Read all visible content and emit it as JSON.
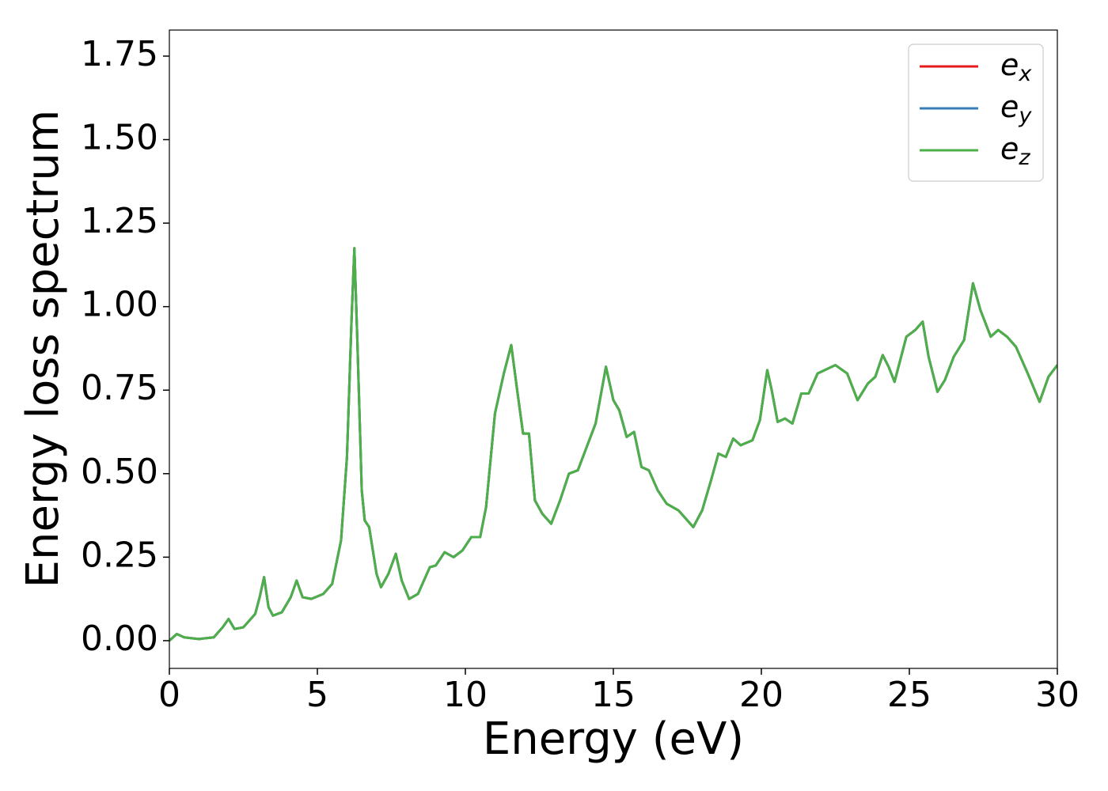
{
  "chart_data": {
    "type": "line",
    "xlabel": "Energy (eV)",
    "ylabel": "Energy loss spectrum",
    "x": [
      0,
      0.25,
      0.5,
      1.0,
      1.5,
      1.8,
      2.0,
      2.2,
      2.5,
      2.9,
      3.05,
      3.2,
      3.35,
      3.5,
      3.8,
      4.1,
      4.3,
      4.5,
      4.8,
      5.2,
      5.5,
      5.8,
      6.0,
      6.15,
      6.25,
      6.35,
      6.5,
      6.6,
      6.75,
      7.0,
      7.15,
      7.4,
      7.65,
      7.85,
      8.1,
      8.4,
      8.8,
      9.0,
      9.3,
      9.6,
      9.9,
      10.2,
      10.5,
      10.7,
      11.0,
      11.3,
      11.55,
      11.75,
      11.95,
      12.15,
      12.35,
      12.6,
      12.9,
      13.2,
      13.5,
      13.8,
      14.1,
      14.4,
      14.75,
      15.0,
      15.2,
      15.45,
      15.7,
      15.95,
      16.2,
      16.5,
      16.8,
      17.2,
      17.5,
      17.7,
      18.0,
      18.3,
      18.55,
      18.8,
      19.05,
      19.3,
      19.7,
      19.95,
      20.2,
      20.35,
      20.55,
      20.8,
      21.05,
      21.35,
      21.6,
      21.9,
      22.5,
      22.9,
      23.25,
      23.6,
      23.85,
      24.1,
      24.3,
      24.5,
      24.9,
      25.2,
      25.45,
      25.65,
      25.95,
      26.2,
      26.5,
      26.85,
      27.15,
      27.4,
      27.75,
      28.0,
      28.3,
      28.6,
      29.0,
      29.4,
      29.7,
      30.0
    ],
    "series": [
      {
        "name": "ex",
        "color": "#e41a1c",
        "values": [
          0.0,
          0.02,
          0.01,
          0.005,
          0.01,
          0.04,
          0.065,
          0.035,
          0.04,
          0.08,
          0.13,
          0.19,
          0.1,
          0.075,
          0.085,
          0.13,
          0.18,
          0.13,
          0.125,
          0.14,
          0.17,
          0.3,
          0.55,
          0.95,
          1.175,
          0.9,
          0.45,
          0.36,
          0.34,
          0.2,
          0.16,
          0.2,
          0.26,
          0.18,
          0.125,
          0.14,
          0.22,
          0.225,
          0.265,
          0.25,
          0.27,
          0.31,
          0.31,
          0.4,
          0.68,
          0.8,
          0.885,
          0.75,
          0.62,
          0.62,
          0.42,
          0.38,
          0.35,
          0.42,
          0.5,
          0.51,
          0.58,
          0.65,
          0.82,
          0.72,
          0.69,
          0.61,
          0.625,
          0.52,
          0.51,
          0.45,
          0.41,
          0.39,
          0.36,
          0.34,
          0.39,
          0.48,
          0.56,
          0.55,
          0.605,
          0.585,
          0.6,
          0.66,
          0.81,
          0.75,
          0.655,
          0.665,
          0.65,
          0.74,
          0.74,
          0.8,
          0.825,
          0.8,
          0.72,
          0.77,
          0.79,
          0.855,
          0.82,
          0.775,
          0.91,
          0.93,
          0.955,
          0.85,
          0.745,
          0.78,
          0.85,
          0.9,
          1.07,
          0.99,
          0.91,
          0.93,
          0.91,
          0.88,
          0.8,
          0.715,
          0.79,
          0.825
        ]
      },
      {
        "name": "ey",
        "color": "#377eb8",
        "values": [
          0.0,
          0.02,
          0.01,
          0.005,
          0.01,
          0.04,
          0.065,
          0.035,
          0.04,
          0.08,
          0.13,
          0.19,
          0.1,
          0.075,
          0.085,
          0.13,
          0.18,
          0.13,
          0.125,
          0.14,
          0.17,
          0.3,
          0.55,
          0.95,
          1.175,
          0.9,
          0.45,
          0.36,
          0.34,
          0.2,
          0.16,
          0.2,
          0.26,
          0.18,
          0.125,
          0.14,
          0.22,
          0.225,
          0.265,
          0.25,
          0.27,
          0.31,
          0.31,
          0.4,
          0.68,
          0.8,
          0.885,
          0.75,
          0.62,
          0.62,
          0.42,
          0.38,
          0.35,
          0.42,
          0.5,
          0.51,
          0.58,
          0.65,
          0.82,
          0.72,
          0.69,
          0.61,
          0.625,
          0.52,
          0.51,
          0.45,
          0.41,
          0.39,
          0.36,
          0.34,
          0.39,
          0.48,
          0.56,
          0.55,
          0.605,
          0.585,
          0.6,
          0.66,
          0.81,
          0.75,
          0.655,
          0.665,
          0.65,
          0.74,
          0.74,
          0.8,
          0.825,
          0.8,
          0.72,
          0.77,
          0.79,
          0.855,
          0.82,
          0.775,
          0.91,
          0.93,
          0.955,
          0.85,
          0.745,
          0.78,
          0.85,
          0.9,
          1.07,
          0.99,
          0.91,
          0.93,
          0.91,
          0.88,
          0.8,
          0.715,
          0.79,
          0.825
        ]
      },
      {
        "name": "ez",
        "color": "#4daf4a",
        "values": [
          0.0,
          0.02,
          0.01,
          0.005,
          0.01,
          0.04,
          0.065,
          0.035,
          0.04,
          0.08,
          0.13,
          0.19,
          0.1,
          0.075,
          0.085,
          0.13,
          0.18,
          0.13,
          0.125,
          0.14,
          0.17,
          0.3,
          0.55,
          0.95,
          1.175,
          0.9,
          0.45,
          0.36,
          0.34,
          0.2,
          0.16,
          0.2,
          0.26,
          0.18,
          0.125,
          0.14,
          0.22,
          0.225,
          0.265,
          0.25,
          0.27,
          0.31,
          0.31,
          0.4,
          0.68,
          0.8,
          0.885,
          0.75,
          0.62,
          0.62,
          0.42,
          0.38,
          0.35,
          0.42,
          0.5,
          0.51,
          0.58,
          0.65,
          0.82,
          0.72,
          0.69,
          0.61,
          0.625,
          0.52,
          0.51,
          0.45,
          0.41,
          0.39,
          0.36,
          0.34,
          0.39,
          0.48,
          0.56,
          0.55,
          0.605,
          0.585,
          0.6,
          0.66,
          0.81,
          0.75,
          0.655,
          0.665,
          0.65,
          0.74,
          0.74,
          0.8,
          0.825,
          0.8,
          0.72,
          0.77,
          0.79,
          0.855,
          0.82,
          0.775,
          0.91,
          0.93,
          0.955,
          0.85,
          0.745,
          0.78,
          0.85,
          0.9,
          1.07,
          0.99,
          0.91,
          0.93,
          0.91,
          0.88,
          0.8,
          0.715,
          0.79,
          0.825
        ]
      }
    ],
    "xlim": [
      0,
      30
    ],
    "xticks": [
      0,
      5,
      10,
      15,
      20,
      25,
      30
    ],
    "ylim": [
      -0.083,
      1.828
    ],
    "yticks": [
      {
        "value": 0,
        "label": "0.00"
      },
      {
        "value": 0.25,
        "label": "0.25"
      },
      {
        "value": 0.5,
        "label": "0.50"
      },
      {
        "value": 0.75,
        "label": "0.75"
      },
      {
        "value": 1.0,
        "label": "1.00"
      },
      {
        "value": 1.25,
        "label": "1.25"
      },
      {
        "value": 1.5,
        "label": "1.50"
      },
      {
        "value": 1.75,
        "label": "1.75"
      }
    ],
    "grid": false,
    "legend": "upper right"
  }
}
